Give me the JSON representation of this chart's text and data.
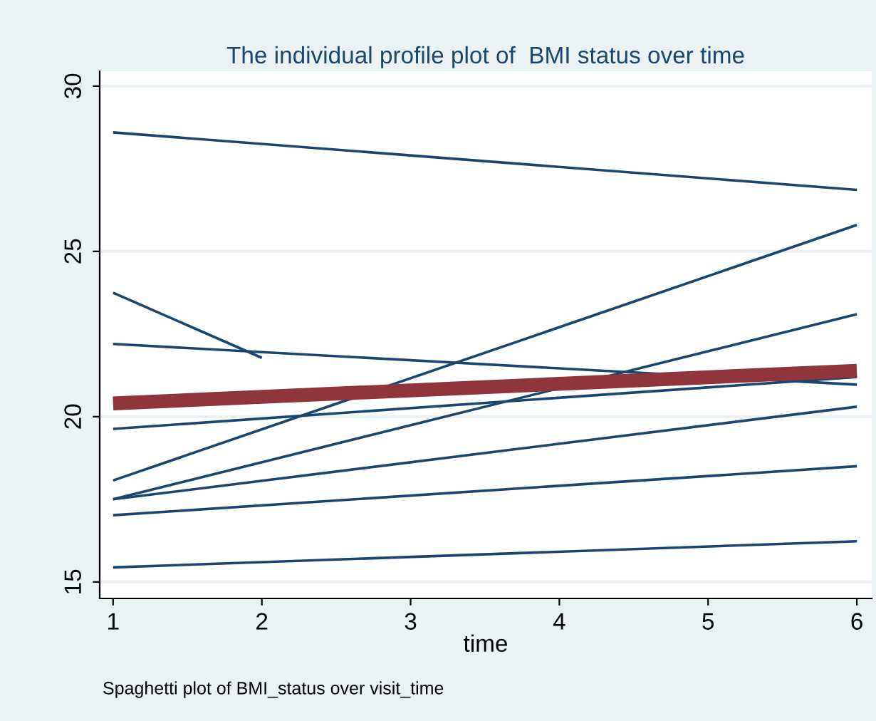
{
  "chart_data": {
    "type": "line",
    "title": "The individual profile plot of  BMI status over time",
    "xlabel": "time",
    "annotations": [
      "Spaghetti plot of BMI_status over visit_time"
    ],
    "series": [
      {
        "x": [
          1,
          6
        ],
        "values": [
          28.6,
          26.86
        ],
        "color": "#1a476f"
      },
      {
        "x": [
          1,
          2
        ],
        "values": [
          23.75,
          21.78
        ],
        "color": "#1a476f"
      },
      {
        "x": [
          1,
          6
        ],
        "values": [
          22.2,
          20.97
        ],
        "color": "#1a476f"
      },
      {
        "x": [
          1,
          6
        ],
        "values": [
          19.63,
          21.2
        ],
        "color": "#1a476f"
      },
      {
        "x": [
          1,
          6
        ],
        "values": [
          18.07,
          25.8
        ],
        "color": "#1a476f"
      },
      {
        "x": [
          1,
          6
        ],
        "values": [
          17.5,
          23.1
        ],
        "color": "#1a476f"
      },
      {
        "x": [
          1,
          6
        ],
        "values": [
          17.5,
          20.3
        ],
        "color": "#1a476f"
      },
      {
        "x": [
          1,
          6
        ],
        "values": [
          17.02,
          18.5
        ],
        "color": "#1a476f"
      },
      {
        "x": [
          1,
          6
        ],
        "values": [
          15.44,
          16.23
        ],
        "color": "#1a476f"
      },
      {
        "x": [
          1,
          6
        ],
        "values": [
          20.4,
          21.39
        ],
        "color": "#90353b"
      }
    ],
    "xlim": [
      0.91,
      6.1
    ],
    "ylim": [
      14.5,
      30.45
    ],
    "xticks": [
      1,
      2,
      3,
      4,
      5,
      6
    ],
    "yticks": [
      15,
      20,
      25,
      30
    ],
    "grid": "y",
    "line_style": "solid",
    "marker": "none"
  }
}
